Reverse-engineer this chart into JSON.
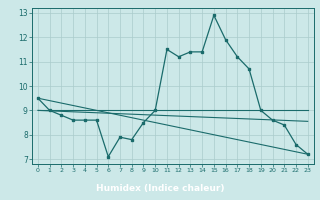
{
  "xlabel": "Humidex (Indice chaleur)",
  "xlim": [
    -0.5,
    23.5
  ],
  "ylim": [
    6.8,
    13.2
  ],
  "yticks": [
    7,
    8,
    9,
    10,
    11,
    12,
    13
  ],
  "xticks": [
    0,
    1,
    2,
    3,
    4,
    5,
    6,
    7,
    8,
    9,
    10,
    11,
    12,
    13,
    14,
    15,
    16,
    17,
    18,
    19,
    20,
    21,
    22,
    23
  ],
  "bg_color": "#cce8e8",
  "plot_bg_color": "#cce8e8",
  "line_color": "#1a6b6b",
  "grid_color": "#aacccc",
  "xlabel_bg": "#336666",
  "xlabel_fg": "#ffffff",
  "line1_x": [
    0,
    1,
    2,
    3,
    4,
    5,
    6,
    7,
    8,
    9,
    10,
    11,
    12,
    13,
    14,
    15,
    16,
    17,
    18,
    19,
    20,
    21,
    22,
    23
  ],
  "line1_y": [
    9.5,
    9.0,
    8.8,
    8.6,
    8.6,
    8.6,
    7.1,
    7.9,
    7.8,
    8.5,
    9.0,
    11.5,
    11.2,
    11.4,
    11.4,
    12.9,
    11.9,
    11.2,
    10.7,
    9.0,
    8.6,
    8.4,
    7.6,
    7.2
  ],
  "line2_x": [
    0,
    23
  ],
  "line2_y": [
    9.0,
    9.0
  ],
  "line3_x": [
    0,
    23
  ],
  "line3_y": [
    9.5,
    7.2
  ],
  "line4_x": [
    0,
    23
  ],
  "line4_y": [
    9.0,
    8.55
  ]
}
